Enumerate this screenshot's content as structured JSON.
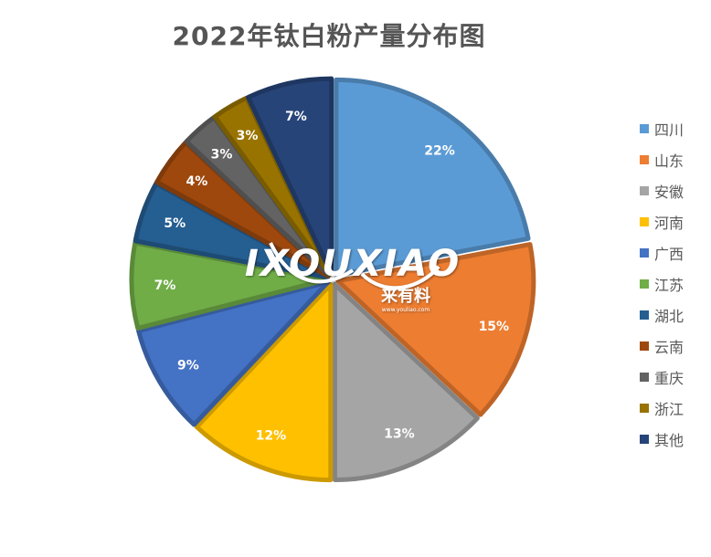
{
  "chart_data": {
    "type": "pie",
    "title": "2022年钛白粉产量分布图",
    "categories": [
      "四川",
      "山东",
      "安徽",
      "河南",
      "广西",
      "江苏",
      "湖北",
      "云南",
      "重庆",
      "浙江",
      "其他"
    ],
    "values": [
      22,
      15,
      13,
      12,
      9,
      7,
      5,
      4,
      3,
      3,
      7
    ],
    "labels": [
      "22%",
      "15%",
      "13%",
      "12%",
      "9%",
      "7%",
      "5%",
      "4%",
      "3%",
      "3%",
      "7%"
    ],
    "colors": [
      "#5B9BD5",
      "#ED7D31",
      "#A5A5A5",
      "#FFC000",
      "#4472C4",
      "#70AD47",
      "#255E91",
      "#9E480E",
      "#636363",
      "#997300",
      "#264478"
    ],
    "legend_position": "right"
  },
  "watermark": {
    "brand": "IXOUXIAO",
    "name": "来有料",
    "url": "www.youliao.com"
  }
}
